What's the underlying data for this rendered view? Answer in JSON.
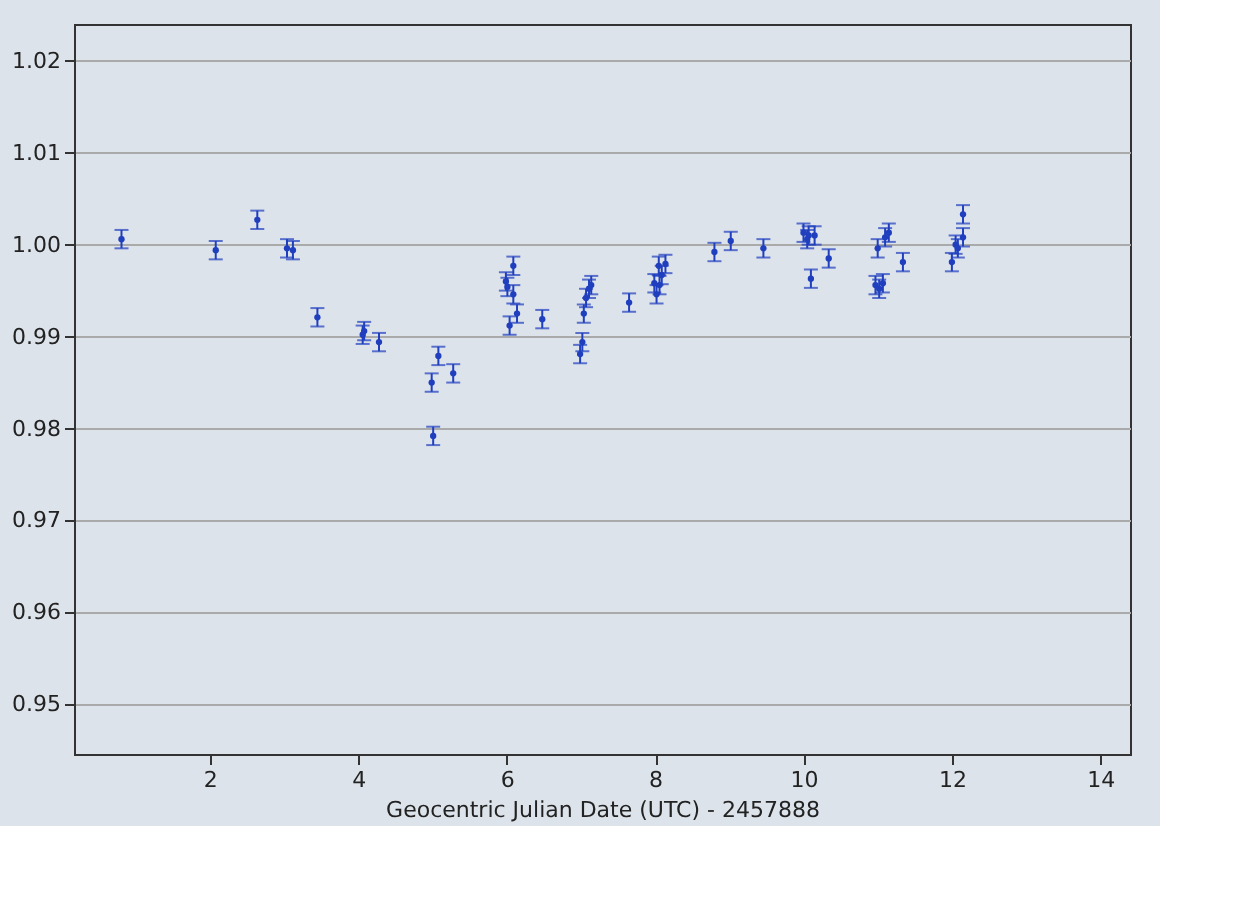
{
  "chart_data": {
    "type": "scatter",
    "xlabel": "Geocentric Julian Date (UTC) - 2457888",
    "xlim": [
      0.17,
      14.4
    ],
    "xticks": [
      2,
      4,
      6,
      8,
      10,
      12,
      14
    ],
    "ylim": [
      0.9446,
      1.024
    ],
    "yticks": [
      0.95,
      0.96,
      0.97,
      0.98,
      0.99,
      {
        "value": 1.0,
        "label": "1.00"
      },
      1.01,
      1.02
    ],
    "grid": "y",
    "marker": "circle",
    "series": [
      {
        "color": "#1f3fbf",
        "x": [
          0.81,
          2.08,
          2.64,
          3.04,
          3.12,
          3.45,
          4.06,
          4.08,
          4.28,
          4.99,
          5.01,
          5.08,
          5.28,
          5.99,
          6.01,
          6.04,
          6.09,
          6.09,
          6.14,
          6.48,
          6.99,
          7.02,
          7.04,
          7.07,
          7.11,
          7.14,
          7.65,
          7.99,
          8.02,
          8.06,
          8.05,
          8.09,
          8.14,
          8.8,
          9.02,
          9.46,
          10.0,
          10.05,
          10.07,
          10.1,
          10.15,
          10.34,
          10.97,
          11.0,
          11.02,
          11.07,
          11.1,
          11.15,
          11.34,
          12.0,
          12.05,
          12.08,
          12.15,
          12.15
        ],
        "values": [
          1.0006,
          0.9994,
          1.0027,
          0.9996,
          0.9994,
          0.9921,
          0.9902,
          0.9906,
          0.9894,
          0.985,
          0.9792,
          0.9879,
          0.986,
          0.996,
          0.9954,
          0.9912,
          0.9977,
          0.9946,
          0.9925,
          0.9919,
          0.9881,
          0.9894,
          0.9925,
          0.9942,
          0.9952,
          0.9956,
          0.9937,
          0.9958,
          0.9946,
          0.9956,
          0.9977,
          0.9967,
          0.9979,
          0.9992,
          1.0004,
          0.9996,
          1.0013,
          1.0006,
          1.001,
          0.9963,
          1.001,
          0.9985,
          0.9956,
          0.9996,
          0.9952,
          0.9958,
          1.0008,
          1.0013,
          0.9981,
          0.9981,
          1.0,
          0.9996,
          1.0033,
          1.0008
        ],
        "errors": [
          0.001,
          0.001,
          0.001,
          0.001,
          0.001,
          0.001,
          0.001,
          0.001,
          0.001,
          0.001,
          0.001,
          0.001,
          0.001,
          0.001,
          0.001,
          0.001,
          0.001,
          0.001,
          0.001,
          0.001,
          0.001,
          0.001,
          0.001,
          0.001,
          0.001,
          0.001,
          0.001,
          0.001,
          0.001,
          0.001,
          0.001,
          0.001,
          0.001,
          0.001,
          0.001,
          0.001,
          0.001,
          0.001,
          0.001,
          0.001,
          0.001,
          0.001,
          0.001,
          0.001,
          0.001,
          0.001,
          0.001,
          0.001,
          0.001,
          0.001,
          0.001,
          0.001,
          0.001,
          0.001
        ]
      }
    ]
  }
}
